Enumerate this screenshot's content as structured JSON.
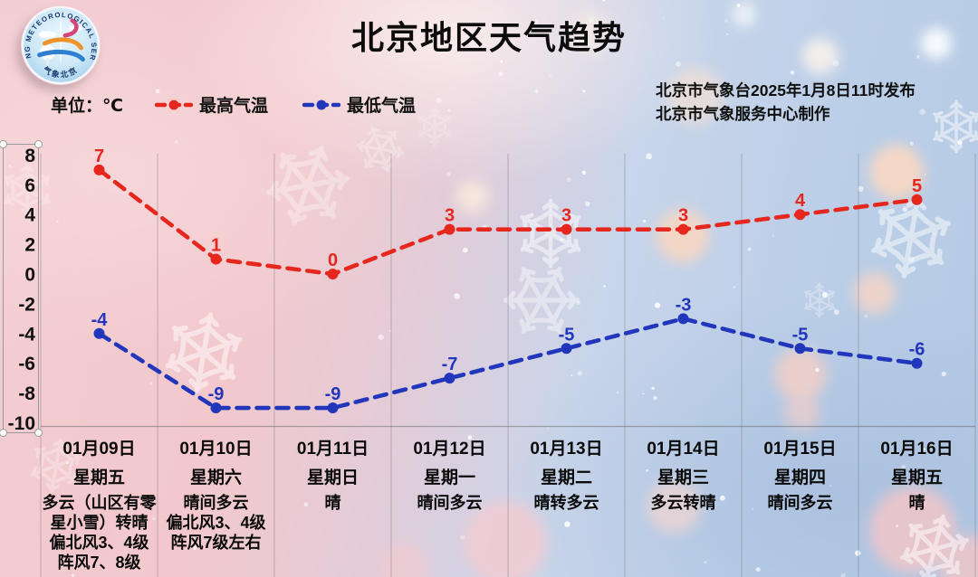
{
  "header": {
    "title": "北京地区天气趋势",
    "unit_label": "单位：℃",
    "issued_line1": "北京市气象台2025年1月8日11时发布",
    "issued_line2": "北京市气象服务中心制作",
    "logo_text_top": "BEIJING METEOROLOGICAL SERVICE",
    "logo_text_bottom": "气象北京"
  },
  "legend": {
    "max_label": "最高气温",
    "min_label": "最低气温"
  },
  "colors": {
    "max_temp": "#e6271e",
    "min_temp": "#2236bb",
    "text": "#0c0c0c",
    "grid": "rgba(110,110,110,0.40)"
  },
  "chart_data": {
    "type": "line",
    "title": "北京地区天气趋势",
    "unit": "℃",
    "categories": [
      "01月09日",
      "01月10日",
      "01月11日",
      "01月12日",
      "01月13日",
      "01月14日",
      "01月15日",
      "01月16日"
    ],
    "weekdays": [
      "星期五",
      "星期六",
      "星期日",
      "星期一",
      "星期二",
      "星期三",
      "星期四",
      "星期五"
    ],
    "series": [
      {
        "name": "最高气温",
        "color": "#e6271e",
        "values": [
          7,
          1,
          0,
          3,
          3,
          3,
          4,
          5
        ]
      },
      {
        "name": "最低气温",
        "color": "#2236bb",
        "values": [
          -4,
          -9,
          -9,
          -7,
          -5,
          -3,
          -5,
          -6
        ]
      }
    ],
    "yticks": [
      8,
      6,
      4,
      2,
      0,
      -2,
      -4,
      -6,
      -8,
      -10
    ],
    "ylim": [
      -10,
      8
    ],
    "grid": "vertical-only",
    "line_style": "dashed-with-dots",
    "point_labels": "above-points"
  },
  "forecast": [
    {
      "date": "01月09日",
      "weekday": "星期五",
      "weather": [
        "多云（山区有零星小雪）转晴",
        "偏北风3、4级",
        "阵风7、8级"
      ]
    },
    {
      "date": "01月10日",
      "weekday": "星期六",
      "weather": [
        "晴间多云",
        "偏北风3、4级",
        "阵风7级左右"
      ]
    },
    {
      "date": "01月11日",
      "weekday": "星期日",
      "weather": [
        "晴"
      ]
    },
    {
      "date": "01月12日",
      "weekday": "星期一",
      "weather": [
        "晴间多云"
      ]
    },
    {
      "date": "01月13日",
      "weekday": "星期二",
      "weather": [
        "晴转多云"
      ]
    },
    {
      "date": "01月14日",
      "weekday": "星期三",
      "weather": [
        "多云转晴"
      ]
    },
    {
      "date": "01月15日",
      "weekday": "星期四",
      "weather": [
        "晴间多云"
      ]
    },
    {
      "date": "01月16日",
      "weekday": "星期五",
      "weather": [
        "晴"
      ]
    }
  ]
}
